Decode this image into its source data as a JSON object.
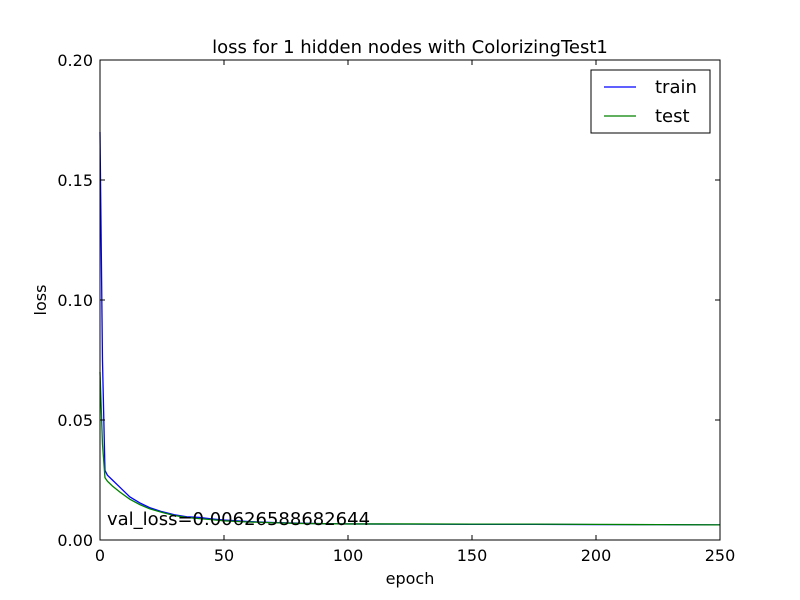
{
  "chart_data": {
    "type": "line",
    "title": "loss for 1 hidden nodes with ColorizingTest1",
    "xlabel": "epoch",
    "ylabel": "loss",
    "xlim": [
      0,
      250
    ],
    "ylim": [
      0,
      0.2
    ],
    "xticks": [
      0,
      50,
      100,
      150,
      200,
      250
    ],
    "xtick_labels": [
      "0",
      "50",
      "100",
      "150",
      "200",
      "250"
    ],
    "yticks": [
      0,
      0.05,
      0.1,
      0.15,
      0.2
    ],
    "ytick_labels": [
      "0.00",
      "0.05",
      "0.10",
      "0.15",
      "0.20"
    ],
    "grid": false,
    "legend_position": "top-right",
    "annotation": "val_loss=0.00626588682644",
    "series": [
      {
        "name": "train",
        "color": "#0000ff",
        "points": [
          [
            0,
            0.17
          ],
          [
            1,
            0.075
          ],
          [
            2,
            0.029
          ],
          [
            3,
            0.027
          ],
          [
            5,
            0.025
          ],
          [
            8,
            0.022
          ],
          [
            12,
            0.018
          ],
          [
            16,
            0.0155
          ],
          [
            20,
            0.0135
          ],
          [
            25,
            0.0118
          ],
          [
            30,
            0.0105
          ],
          [
            35,
            0.0097
          ],
          [
            40,
            0.0094
          ],
          [
            45,
            0.0088
          ],
          [
            50,
            0.0083
          ],
          [
            60,
            0.0077
          ],
          [
            70,
            0.0073
          ],
          [
            80,
            0.007
          ],
          [
            90,
            0.0068
          ],
          [
            100,
            0.0067
          ],
          [
            125,
            0.0066
          ],
          [
            150,
            0.0065
          ],
          [
            175,
            0.0065
          ],
          [
            200,
            0.0064
          ],
          [
            225,
            0.0064
          ],
          [
            250,
            0.0063
          ]
        ]
      },
      {
        "name": "test",
        "color": "#008000",
        "points": [
          [
            0,
            0.07
          ],
          [
            1,
            0.04
          ],
          [
            2,
            0.026
          ],
          [
            3,
            0.0245
          ],
          [
            5,
            0.0225
          ],
          [
            8,
            0.02
          ],
          [
            12,
            0.017
          ],
          [
            16,
            0.0148
          ],
          [
            20,
            0.013
          ],
          [
            25,
            0.0115
          ],
          [
            30,
            0.0102
          ],
          [
            35,
            0.0094
          ],
          [
            40,
            0.0089
          ],
          [
            45,
            0.0085
          ],
          [
            50,
            0.008
          ],
          [
            60,
            0.0075
          ],
          [
            70,
            0.0072
          ],
          [
            80,
            0.0069
          ],
          [
            90,
            0.0068
          ],
          [
            100,
            0.0067
          ],
          [
            125,
            0.0067
          ],
          [
            150,
            0.0066
          ],
          [
            175,
            0.0066
          ],
          [
            200,
            0.0065
          ],
          [
            225,
            0.0064
          ],
          [
            250,
            0.0063
          ]
        ]
      }
    ]
  }
}
